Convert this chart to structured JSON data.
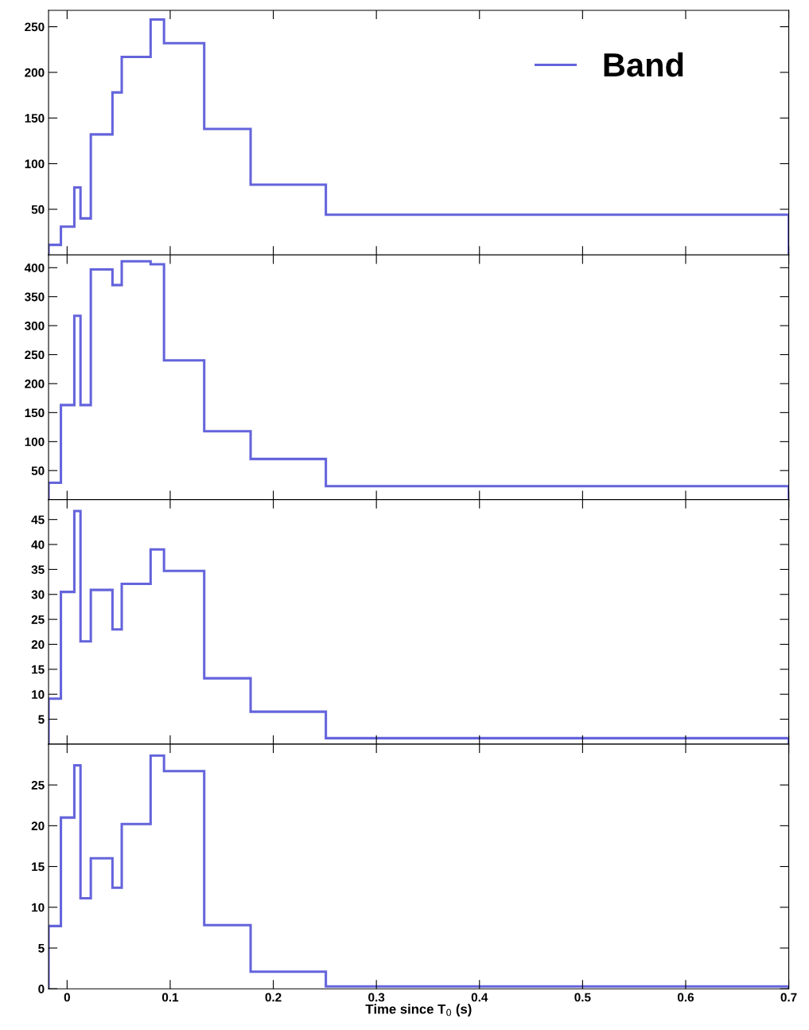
{
  "chart_data": [
    {
      "type": "histogram",
      "bins": [
        -0.018,
        -0.006,
        0.007,
        0.013,
        0.023,
        0.044,
        0.053,
        0.081,
        0.094,
        0.133,
        0.178,
        0.251,
        0.7
      ],
      "series": [
        {
          "name": "Band",
          "color": "#6464dc",
          "values": [
            11,
            31,
            74,
            40,
            132,
            178,
            217,
            258,
            232,
            138,
            77,
            44
          ]
        }
      ],
      "xlim": [
        -0.018,
        0.7
      ],
      "xticks": [
        0,
        0.1,
        0.2,
        0.3,
        0.4,
        0.5,
        0.6,
        0.7
      ],
      "ylim": [
        0,
        268
      ],
      "yticks": [
        50,
        100,
        150,
        200,
        250
      ],
      "tick_labels": "y",
      "legend": "top right",
      "grid": false
    },
    {
      "type": "histogram",
      "bins": [
        -0.018,
        -0.006,
        0.007,
        0.013,
        0.023,
        0.044,
        0.053,
        0.081,
        0.094,
        0.133,
        0.178,
        0.251,
        0.7
      ],
      "series": [
        {
          "color": "#6464dc",
          "values": [
            29,
            163,
            317,
            163,
            397,
            370,
            411,
            406,
            240,
            118,
            70,
            23
          ]
        }
      ],
      "xlim": [
        -0.018,
        0.7
      ],
      "xticks": [
        0,
        0.1,
        0.2,
        0.3,
        0.4,
        0.5,
        0.6,
        0.7
      ],
      "ylim": [
        0,
        422
      ],
      "yticks": [
        50,
        100,
        150,
        200,
        250,
        300,
        350,
        400
      ],
      "tick_labels": "y",
      "grid": false
    },
    {
      "type": "histogram",
      "bins": [
        -0.018,
        -0.006,
        0.007,
        0.013,
        0.023,
        0.044,
        0.053,
        0.081,
        0.094,
        0.133,
        0.178,
        0.251,
        0.7
      ],
      "series": [
        {
          "color": "#6464dc",
          "values": [
            9.1,
            30.5,
            46.7,
            20.6,
            30.9,
            23,
            32.1,
            39,
            34.7,
            13.2,
            6.5,
            1.2
          ]
        }
      ],
      "xlim": [
        -0.018,
        0.7
      ],
      "xticks": [
        0,
        0.1,
        0.2,
        0.3,
        0.4,
        0.5,
        0.6,
        0.7
      ],
      "ylim": [
        0,
        49
      ],
      "yticks": [
        5,
        10,
        15,
        20,
        25,
        30,
        35,
        40,
        45
      ],
      "tick_labels": "y",
      "grid": false
    },
    {
      "type": "histogram",
      "bins": [
        -0.018,
        -0.006,
        0.007,
        0.013,
        0.023,
        0.044,
        0.053,
        0.081,
        0.094,
        0.133,
        0.178,
        0.251,
        0.7
      ],
      "series": [
        {
          "color": "#6464dc",
          "values": [
            7.7,
            21,
            27.4,
            11.1,
            16,
            12.4,
            20.2,
            28.6,
            26.7,
            7.8,
            2.1,
            0.3
          ]
        }
      ],
      "xlim": [
        -0.018,
        0.7
      ],
      "xticks": [
        0,
        0.1,
        0.2,
        0.3,
        0.4,
        0.5,
        0.6,
        0.7
      ],
      "ylim": [
        0,
        30
      ],
      "yticks": [
        0,
        5,
        10,
        15,
        20,
        25
      ],
      "xlabel": "Time since T$_{0}$ (s)",
      "grid": false
    }
  ]
}
